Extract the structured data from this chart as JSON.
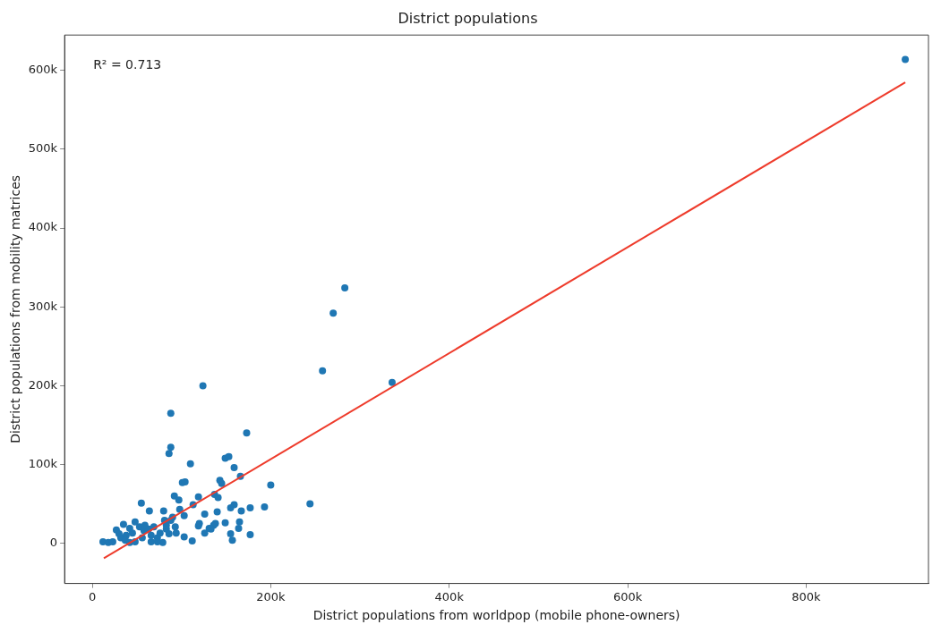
{
  "chart_data": {
    "type": "scatter",
    "title": "District populations",
    "xlabel": "District populations from worldpop (mobile phone-owners)",
    "ylabel": "District populations from mobility matrices",
    "annotations": [
      "R² = 0.713"
    ],
    "xlim": [
      -31000,
      937000
    ],
    "ylim": [
      -51000,
      645000
    ],
    "xticks": [
      {
        "value": 0,
        "label": "0"
      },
      {
        "value": 200000,
        "label": "200k"
      },
      {
        "value": 400000,
        "label": "400k"
      },
      {
        "value": 600000,
        "label": "600k"
      },
      {
        "value": 800000,
        "label": "800k"
      }
    ],
    "yticks": [
      {
        "value": 0,
        "label": "0"
      },
      {
        "value": 100000,
        "label": "100k"
      },
      {
        "value": 200000,
        "label": "200k"
      },
      {
        "value": 300000,
        "label": "300k"
      },
      {
        "value": 400000,
        "label": "400k"
      },
      {
        "value": 500000,
        "label": "500k"
      },
      {
        "value": 600000,
        "label": "600k"
      }
    ],
    "grid": false,
    "legend": false,
    "marker": "circle",
    "series": [
      {
        "color": "#1f77b4",
        "x": [
          911000,
          336000,
          283000,
          270000,
          258000,
          124000,
          173000,
          149000,
          153000,
          159000,
          166000,
          143000,
          145000,
          200000,
          119000,
          137000,
          141000,
          244000,
          177000,
          193000,
          159000,
          155000,
          167000,
          140000,
          126000,
          149000,
          165000,
          164000,
          136000,
          131000,
          119000,
          126000,
          177000,
          155000,
          157000,
          88000,
          88000,
          86000,
          110000,
          101000,
          104000,
          92000,
          97000,
          55000,
          64000,
          80000,
          98000,
          103000,
          113000,
          81000,
          90000,
          120000,
          138000,
          103000,
          112000,
          133000,
          35000,
          48000,
          27000,
          12000,
          18000,
          23000,
          32000,
          38000,
          45000,
          53000,
          58000,
          63000,
          66000,
          73000,
          76000,
          83000,
          86000,
          93000,
          94000,
          56000,
          48000,
          42000,
          37000,
          66000,
          79000,
          73000,
          30000,
          42000,
          59000,
          69000,
          83000,
          88000
        ],
        "values": [
          614000,
          204000,
          324000,
          292000,
          219000,
          200000,
          140000,
          108000,
          110000,
          96000,
          85000,
          80000,
          76000,
          74000,
          59000,
          62000,
          58000,
          50000,
          45000,
          46000,
          49000,
          45000,
          41000,
          40000,
          37000,
          26000,
          27000,
          19000,
          23000,
          19000,
          22000,
          13000,
          11000,
          12000,
          4000,
          165000,
          122000,
          114000,
          101000,
          77000,
          78000,
          60000,
          55000,
          51000,
          41000,
          41000,
          43000,
          35000,
          49000,
          29000,
          33000,
          25000,
          25000,
          8000,
          3000,
          18000,
          24000,
          27000,
          17000,
          2000,
          1000,
          2000,
          7000,
          10000,
          13000,
          21000,
          16000,
          18000,
          10000,
          7000,
          13000,
          18000,
          12000,
          21000,
          13000,
          7000,
          2000,
          1000,
          4000,
          2000,
          1000,
          2000,
          12000,
          19000,
          23000,
          21000,
          23000,
          29000
        ]
      },
      {
        "type": "line",
        "color": "#ee3b2b",
        "marker": "none",
        "x": [
          13000,
          911000
        ],
        "values": [
          -19000,
          585000
        ]
      }
    ]
  }
}
